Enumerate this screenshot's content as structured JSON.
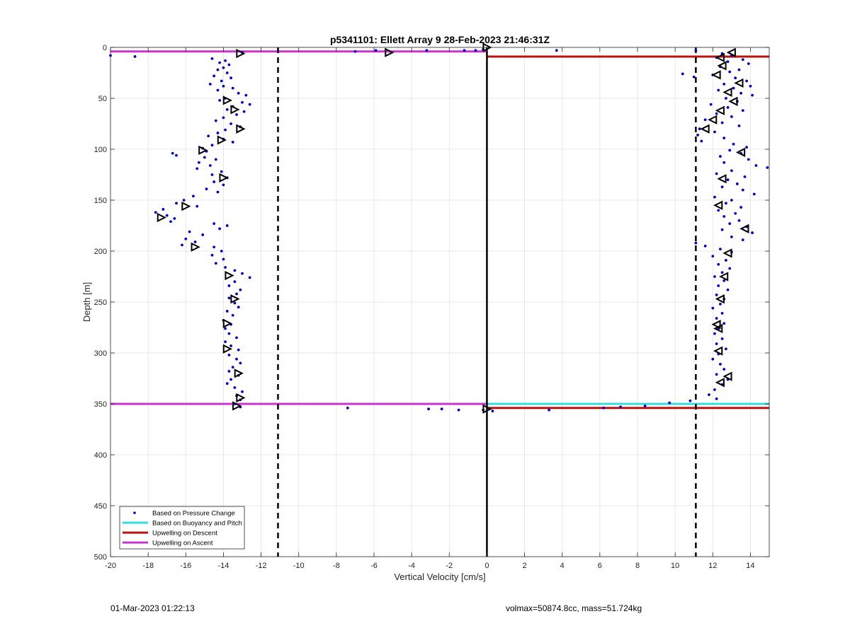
{
  "footer": {
    "timestamp": "01-Mar-2023 01:22:13",
    "info": "volmax=50874.8cc, mass=51.724kg"
  },
  "chart_data": {
    "type": "scatter",
    "title": "p5341101: Ellett Array 9 28-Feb-2023 21:46:31Z",
    "xlabel": "Vertical Velocity [cm/s]",
    "ylabel": "Depth [m]",
    "xlim": [
      -20,
      15
    ],
    "ylim": [
      0,
      500
    ],
    "y_reversed": true,
    "grid": true,
    "legend_position": "bottom-left",
    "xticks": [
      -20,
      -18,
      -16,
      -14,
      -12,
      -10,
      -8,
      -6,
      -4,
      -2,
      0,
      2,
      4,
      6,
      8,
      10,
      12,
      14
    ],
    "yticks": [
      0,
      50,
      100,
      150,
      200,
      250,
      300,
      350,
      400,
      450,
      500
    ],
    "colors": {
      "pressure": "#0000cc",
      "buoyancy": "#33dddd",
      "descent": "#bb1111",
      "ascent": "#cc33cc",
      "reference": "#000000"
    },
    "legend": [
      {
        "label": "Based on Pressure Change",
        "style": "dot",
        "color": "#0000cc"
      },
      {
        "label": "Based on Buoyancy and Pitch",
        "style": "line",
        "color": "#33dddd"
      },
      {
        "label": "Upwelling on Descent",
        "style": "line",
        "color": "#bb1111"
      },
      {
        "label": "Upwelling on Ascent",
        "style": "line",
        "color": "#cc33cc"
      }
    ],
    "vertical_lines": {
      "solid_x": 0,
      "dashed_x": [
        -11.1,
        11.1
      ]
    },
    "series": [
      {
        "name": "Based on Pressure Change",
        "style": "dots",
        "ascent_points": [
          [
            -20.0,
            8
          ],
          [
            -18.7,
            9
          ],
          [
            -14.6,
            11
          ],
          [
            -13.0,
            5
          ],
          [
            -13.9,
            13
          ],
          [
            -14.2,
            15
          ],
          [
            -13.7,
            17
          ],
          [
            -14.0,
            20
          ],
          [
            -14.3,
            22
          ],
          [
            -13.8,
            25
          ],
          [
            -14.5,
            28
          ],
          [
            -13.6,
            30
          ],
          [
            -14.1,
            33
          ],
          [
            -14.7,
            36
          ],
          [
            -14.0,
            38
          ],
          [
            -13.5,
            40
          ],
          [
            -14.3,
            42
          ],
          [
            -13.2,
            45
          ],
          [
            -12.8,
            47
          ],
          [
            -13.9,
            50
          ],
          [
            -14.2,
            52
          ],
          [
            -13.0,
            54
          ],
          [
            -12.6,
            56
          ],
          [
            -13.5,
            58
          ],
          [
            -13.8,
            61
          ],
          [
            -12.9,
            63
          ],
          [
            -13.3,
            66
          ],
          [
            -14.0,
            69
          ],
          [
            -14.4,
            72
          ],
          [
            -13.6,
            75
          ],
          [
            -13.1,
            78
          ],
          [
            -13.9,
            81
          ],
          [
            -14.3,
            84
          ],
          [
            -14.8,
            87
          ],
          [
            -14.0,
            90
          ],
          [
            -13.5,
            93
          ],
          [
            -14.6,
            96
          ],
          [
            -15.1,
            99
          ],
          [
            -14.9,
            102
          ],
          [
            -16.7,
            104
          ],
          [
            -16.5,
            106
          ],
          [
            -15.0,
            108
          ],
          [
            -14.4,
            110
          ],
          [
            -15.3,
            113
          ],
          [
            -14.7,
            116
          ],
          [
            -15.4,
            119
          ],
          [
            -14.1,
            122
          ],
          [
            -14.6,
            125
          ],
          [
            -13.8,
            128
          ],
          [
            -14.5,
            132
          ],
          [
            -14.0,
            135
          ],
          [
            -14.9,
            139
          ],
          [
            -14.3,
            142
          ],
          [
            -15.6,
            146
          ],
          [
            -16.1,
            150
          ],
          [
            -16.5,
            153
          ],
          [
            -15.4,
            156
          ],
          [
            -17.2,
            159
          ],
          [
            -17.6,
            162
          ],
          [
            -17.0,
            165
          ],
          [
            -16.6,
            168
          ],
          [
            -16.8,
            171
          ],
          [
            -14.5,
            173
          ],
          [
            -13.8,
            175
          ],
          [
            -14.2,
            178
          ],
          [
            -15.8,
            181
          ],
          [
            -15.1,
            184
          ],
          [
            -16.0,
            188
          ],
          [
            -15.5,
            191
          ],
          [
            -16.2,
            194
          ],
          [
            -14.5,
            196
          ],
          [
            -14.1,
            200
          ],
          [
            -14.6,
            204
          ],
          [
            -14.0,
            208
          ],
          [
            -14.4,
            212
          ],
          [
            -13.9,
            216
          ],
          [
            -13.4,
            219
          ],
          [
            -13.0,
            222
          ],
          [
            -12.6,
            226
          ],
          [
            -13.4,
            230
          ],
          [
            -13.7,
            234
          ],
          [
            -13.1,
            238
          ],
          [
            -13.3,
            242
          ],
          [
            -13.7,
            246
          ],
          [
            -13.4,
            251
          ],
          [
            -13.2,
            255
          ],
          [
            -13.8,
            259
          ],
          [
            -13.5,
            263
          ],
          [
            -14.0,
            268
          ],
          [
            -13.6,
            272
          ],
          [
            -13.9,
            276
          ],
          [
            -13.7,
            281
          ],
          [
            -13.3,
            285
          ],
          [
            -13.9,
            289
          ],
          [
            -13.6,
            293
          ],
          [
            -13.2,
            297
          ],
          [
            -13.7,
            302
          ],
          [
            -13.3,
            306
          ],
          [
            -13.1,
            310
          ],
          [
            -13.5,
            314
          ],
          [
            -13.7,
            318
          ],
          [
            -13.2,
            322
          ],
          [
            -13.6,
            326
          ],
          [
            -13.8,
            330
          ],
          [
            -13.4,
            334
          ],
          [
            -13.0,
            338
          ],
          [
            -13.3,
            342
          ],
          [
            -13.1,
            346
          ],
          [
            -13.4,
            350
          ],
          [
            -13.1,
            353
          ],
          [
            -7.4,
            354
          ],
          [
            -3.1,
            355
          ],
          [
            -2.4,
            355
          ],
          [
            -1.5,
            356
          ],
          [
            -0.2,
            356
          ],
          [
            -7.0,
            4
          ],
          [
            -5.9,
            3
          ],
          [
            -3.2,
            3
          ],
          [
            -1.2,
            3
          ],
          [
            -0.6,
            3
          ],
          [
            -0.2,
            2
          ]
        ],
        "descent_points": [
          [
            3.7,
            3
          ],
          [
            11.1,
            3
          ],
          [
            10.4,
            26
          ],
          [
            11.0,
            29
          ],
          [
            12.5,
            6
          ],
          [
            13.0,
            8
          ],
          [
            12.2,
            10
          ],
          [
            13.6,
            12
          ],
          [
            12.8,
            14
          ],
          [
            13.9,
            16
          ],
          [
            12.4,
            19
          ],
          [
            13.4,
            22
          ],
          [
            12.9,
            24
          ],
          [
            12.0,
            27
          ],
          [
            13.2,
            30
          ],
          [
            13.8,
            33
          ],
          [
            12.6,
            36
          ],
          [
            14.0,
            38
          ],
          [
            13.1,
            40
          ],
          [
            12.3,
            42
          ],
          [
            13.5,
            45
          ],
          [
            14.1,
            47
          ],
          [
            12.7,
            50
          ],
          [
            13.3,
            53
          ],
          [
            11.9,
            56
          ],
          [
            12.8,
            59
          ],
          [
            13.6,
            62
          ],
          [
            12.2,
            65
          ],
          [
            13.0,
            68
          ],
          [
            11.6,
            71
          ],
          [
            12.5,
            74
          ],
          [
            13.4,
            77
          ],
          [
            11.3,
            80
          ],
          [
            12.1,
            83
          ],
          [
            11.2,
            86
          ],
          [
            12.6,
            89
          ],
          [
            11.4,
            92
          ],
          [
            13.1,
            95
          ],
          [
            13.8,
            98
          ],
          [
            12.9,
            101
          ],
          [
            13.5,
            104
          ],
          [
            12.4,
            107
          ],
          [
            13.9,
            110
          ],
          [
            12.6,
            113
          ],
          [
            14.3,
            116
          ],
          [
            14.9,
            118
          ],
          [
            13.0,
            121
          ],
          [
            12.2,
            124
          ],
          [
            13.7,
            127
          ],
          [
            12.8,
            130
          ],
          [
            13.3,
            134
          ],
          [
            12.5,
            137
          ],
          [
            13.6,
            140
          ],
          [
            14.2,
            144
          ],
          [
            12.1,
            147
          ],
          [
            13.0,
            150
          ],
          [
            12.7,
            153
          ],
          [
            13.5,
            157
          ],
          [
            12.3,
            160
          ],
          [
            13.2,
            163
          ],
          [
            12.6,
            166
          ],
          [
            13.4,
            170
          ],
          [
            12.9,
            173
          ],
          [
            13.8,
            176
          ],
          [
            12.5,
            179
          ],
          [
            14.1,
            182
          ],
          [
            13.0,
            186
          ],
          [
            13.6,
            189
          ],
          [
            11.1,
            192
          ],
          [
            11.6,
            195
          ],
          [
            12.4,
            198
          ],
          [
            13.0,
            201
          ],
          [
            12.0,
            205
          ],
          [
            12.7,
            209
          ],
          [
            12.3,
            213
          ],
          [
            12.9,
            217
          ],
          [
            12.5,
            221
          ],
          [
            12.1,
            225
          ],
          [
            12.6,
            229
          ],
          [
            12.3,
            234
          ],
          [
            12.8,
            238
          ],
          [
            12.2,
            243
          ],
          [
            12.6,
            247
          ],
          [
            12.4,
            252
          ],
          [
            12.0,
            256
          ],
          [
            12.5,
            261
          ],
          [
            12.2,
            266
          ],
          [
            12.6,
            271
          ],
          [
            12.3,
            276
          ],
          [
            12.1,
            281
          ],
          [
            12.5,
            286
          ],
          [
            12.2,
            291
          ],
          [
            12.7,
            296
          ],
          [
            12.3,
            301
          ],
          [
            12.0,
            306
          ],
          [
            12.4,
            311
          ],
          [
            12.6,
            316
          ],
          [
            12.2,
            321
          ],
          [
            12.8,
            326
          ],
          [
            12.5,
            331
          ],
          [
            12.1,
            336
          ],
          [
            11.8,
            341
          ],
          [
            12.2,
            345
          ],
          [
            10.8,
            347
          ],
          [
            9.7,
            349
          ],
          [
            8.4,
            352
          ],
          [
            7.1,
            353
          ],
          [
            6.2,
            354
          ],
          [
            3.3,
            356
          ],
          [
            0.3,
            357
          ]
        ]
      },
      {
        "name": "Based on Buoyancy and Pitch",
        "style": "line",
        "segments": [
          {
            "x": [
              0,
              15
            ],
            "y": [
              350,
              350
            ]
          }
        ]
      },
      {
        "name": "Upwelling on Descent",
        "style": "line",
        "segments": [
          {
            "x": [
              0,
              15
            ],
            "y": [
              9,
              9
            ]
          },
          {
            "x": [
              0,
              15
            ],
            "y": [
              354,
              354
            ]
          }
        ]
      },
      {
        "name": "Upwelling on Ascent",
        "style": "line",
        "segments": [
          {
            "x": [
              -20,
              0
            ],
            "y": [
              4,
              4
            ]
          },
          {
            "x": [
              -20,
              0
            ],
            "y": [
              350,
              350
            ]
          }
        ]
      }
    ],
    "ascent_markers": [
      [
        -13.1,
        6
      ],
      [
        -13.4,
        61
      ],
      [
        -13.8,
        52
      ],
      [
        -13.1,
        80
      ],
      [
        -14.1,
        91
      ],
      [
        -15.1,
        101
      ],
      [
        -14.0,
        128
      ],
      [
        -16.0,
        156
      ],
      [
        -17.3,
        167
      ],
      [
        -15.5,
        196
      ],
      [
        -13.7,
        224
      ],
      [
        -13.4,
        247
      ],
      [
        -13.8,
        271
      ],
      [
        -13.8,
        296
      ],
      [
        -13.2,
        320
      ],
      [
        -13.1,
        344
      ],
      [
        -13.3,
        352
      ],
      [
        -5.2,
        5
      ],
      [
        0.0,
        0
      ],
      [
        0.0,
        355
      ]
    ],
    "descent_markers": [
      [
        13.0,
        5
      ],
      [
        12.4,
        10
      ],
      [
        12.5,
        18
      ],
      [
        12.2,
        27
      ],
      [
        13.4,
        35
      ],
      [
        12.8,
        44
      ],
      [
        13.1,
        53
      ],
      [
        12.4,
        62
      ],
      [
        12.0,
        71
      ],
      [
        11.6,
        80
      ],
      [
        13.5,
        103
      ],
      [
        12.5,
        129
      ],
      [
        12.3,
        155
      ],
      [
        13.7,
        178
      ],
      [
        12.8,
        202
      ],
      [
        12.6,
        225
      ],
      [
        12.4,
        247
      ],
      [
        12.2,
        272
      ],
      [
        12.3,
        276
      ],
      [
        12.3,
        298
      ],
      [
        12.8,
        323
      ],
      [
        12.4,
        329
      ]
    ]
  }
}
